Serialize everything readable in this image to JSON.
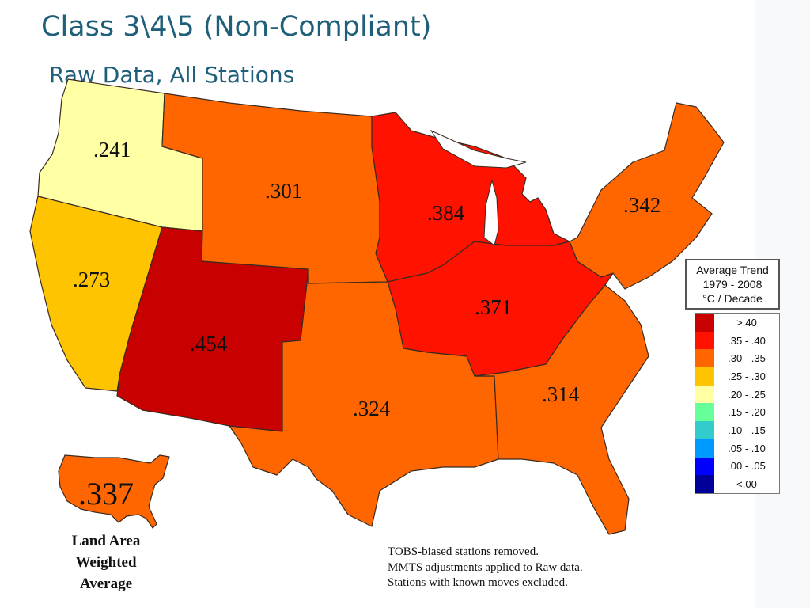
{
  "header": {
    "title": "Class 3\\4\\5 (Non-Compliant)",
    "subtitle": "Raw Data, All Stations"
  },
  "regions": [
    {
      "name": "Northwest",
      "value": ".241",
      "color": "#ffffa3"
    },
    {
      "name": "West",
      "value": ".273",
      "color": "#ffc400"
    },
    {
      "name": "Southwest",
      "value": ".454",
      "color": "#c80000"
    },
    {
      "name": "Northern Rockies and Plains",
      "value": ".301",
      "color": "#ff6600"
    },
    {
      "name": "Upper Midwest",
      "value": ".384",
      "color": "#ff1200"
    },
    {
      "name": "Ohio Valley",
      "value": ".371",
      "color": "#ff1200"
    },
    {
      "name": "South",
      "value": ".324",
      "color": "#ff6600"
    },
    {
      "name": "Southeast",
      "value": ".314",
      "color": "#ff6600"
    },
    {
      "name": "Northeast",
      "value": ".342",
      "color": "#ff6600"
    }
  ],
  "legend": {
    "title_lines": [
      "Average Trend",
      "1979 - 2008",
      "°C / Decade"
    ],
    "bins": [
      {
        "label": ">.40",
        "color": "#c80000"
      },
      {
        "label": ".35 - .40",
        "color": "#ff1200"
      },
      {
        "label": ".30 - .35",
        "color": "#ff6600"
      },
      {
        "label": ".25 - .30",
        "color": "#ffc400"
      },
      {
        "label": ".20 - .25",
        "color": "#ffffa3"
      },
      {
        "label": ".15 - .20",
        "color": "#66ff99"
      },
      {
        "label": ".10 - .15",
        "color": "#33cccc"
      },
      {
        "label": ".05 - .10",
        "color": "#0099ff"
      },
      {
        "label": ".00 - .05",
        "color": "#0000ff"
      },
      {
        "label": "<.00",
        "color": "#000099"
      }
    ]
  },
  "national": {
    "value": ".337",
    "color": "#ff6600",
    "caption_lines": [
      "Land Area",
      "Weighted",
      "Average"
    ]
  },
  "notes": [
    "TOBS-biased stations removed.",
    "MMTS adjustments applied to Raw data.",
    "Stations with known moves excluded."
  ]
}
